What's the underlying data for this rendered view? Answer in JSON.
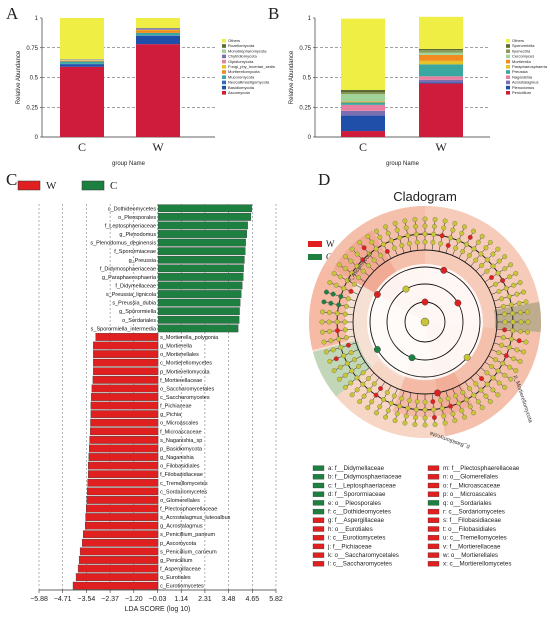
{
  "panels": {
    "a": "A",
    "b": "B",
    "c": "C",
    "d": "D"
  },
  "chart_data": [
    {
      "type": "bar",
      "panel": "A",
      "stacked": true,
      "ylabel": "Relative Abundance",
      "xlabel": "group Name",
      "categories": [
        "C",
        "W"
      ],
      "yticks": [
        "0",
        "0.25",
        "0.5",
        "0.75",
        "1"
      ],
      "ylim": [
        0,
        1
      ],
      "series": [
        {
          "name": "Ascomycota",
          "color": "#d01c3c",
          "values": [
            0.59,
            0.78
          ]
        },
        {
          "name": "Basidiomycota",
          "color": "#1f4fa8",
          "values": [
            0.02,
            0.07
          ]
        },
        {
          "name": "Neocallimastigomycota",
          "color": "#2e6fb0",
          "values": [
            0.005,
            0.005
          ]
        },
        {
          "name": "Mucoromycota",
          "color": "#3aa7a0",
          "values": [
            0.02,
            0.02
          ]
        },
        {
          "name": "Mortierellomycota",
          "color": "#f28a1e",
          "values": [
            0.005,
            0.02
          ]
        },
        {
          "name": "Fungi_phy_Incertae_sedis",
          "color": "#e6c229",
          "values": [
            0.005,
            0.005
          ]
        },
        {
          "name": "Olpidiomycota",
          "color": "#e87fa0",
          "values": [
            0.002,
            0.002
          ]
        },
        {
          "name": "Chytridiomycota",
          "color": "#7a6fb0",
          "values": [
            0.003,
            0.01
          ]
        },
        {
          "name": "Monoblepharomycota",
          "color": "#9fd39a",
          "values": [
            0.002,
            0.002
          ]
        },
        {
          "name": "Rozellomycota",
          "color": "#5b6b2f",
          "values": [
            0.002,
            0.002
          ]
        },
        {
          "name": "Others",
          "color": "#eeee44",
          "values": [
            0.346,
            0.084
          ]
        }
      ]
    },
    {
      "type": "bar",
      "panel": "B",
      "stacked": true,
      "ylabel": "Relative Abundance",
      "xlabel": "group Name",
      "categories": [
        "C",
        "W"
      ],
      "yticks": [
        "0",
        "0.25",
        "0.5",
        "0.75",
        "1"
      ],
      "ylim": [
        0,
        1
      ],
      "series": [
        {
          "name": "Penicillium",
          "color": "#d01c3c",
          "values": [
            0.05,
            0.45
          ]
        },
        {
          "name": "Plenodomus",
          "color": "#1f4fa8",
          "values": [
            0.13,
            0.01
          ]
        },
        {
          "name": "Acrostalagmus",
          "color": "#7a6fb0",
          "values": [
            0.04,
            0.02
          ]
        },
        {
          "name": "Naganishia",
          "color": "#e87fa0",
          "values": [
            0.05,
            0.03
          ]
        },
        {
          "name": "Preussia",
          "color": "#3aa7a0",
          "values": [
            0.02,
            0.1
          ]
        },
        {
          "name": "Paraphaeosphaeria",
          "color": "#e6c229",
          "values": [
            0.005,
            0.03
          ]
        },
        {
          "name": "Mortierella",
          "color": "#f28a1e",
          "values": [
            0.005,
            0.05
          ]
        },
        {
          "name": "Cercomyces",
          "color": "#9fd39a",
          "values": [
            0.06,
            0.02
          ]
        },
        {
          "name": "Ilyonectria",
          "color": "#8a9a55",
          "values": [
            0.015,
            0.02
          ]
        },
        {
          "name": "Sporormiella",
          "color": "#5b6b2f",
          "values": [
            0.02,
            0.01
          ]
        },
        {
          "name": "Others",
          "color": "#eeee44",
          "values": [
            0.6,
            0.27
          ]
        }
      ]
    },
    {
      "type": "bar",
      "panel": "C",
      "orientation": "horizontal",
      "xlabel": "LDA SCORE (log 10)",
      "xticks": [
        "−5.88",
        "−4.71",
        "−3.54",
        "−2.37",
        "−1.20",
        "−0.03",
        "1.14",
        "2.31",
        "3.48",
        "4.65",
        "5.82"
      ],
      "xlim": [
        -5.88,
        5.82
      ],
      "legend": [
        {
          "name": "W",
          "color": "#e02020"
        },
        {
          "name": "C",
          "color": "#1e8040"
        }
      ],
      "categories": [
        "c_Dothideomycetes",
        "o_Pleosporales",
        "f_Leptosphaeriaceae",
        "g_Plenodomus",
        "s_Plenodomus_deginensis",
        "f_Sporormiaceae",
        "g_Preussia",
        "f_Didymosphaeriaceae",
        "g_Paraphaeosphaeria",
        "f_Didymellaceae",
        "s_Preussia_lignicola",
        "s_Preussia_dubia",
        "g_Sporormiella",
        "o_Sordariales",
        "s_Sporormiella_intermedia",
        "s_Mortierella_polygonia",
        "g_Mortierella",
        "o_Mortierellales",
        "c_Mortierellomycetes",
        "p_Mortierellomycota",
        "f_Mortierellaceae",
        "o_Saccharomycetales",
        "c_Saccharomycetes",
        "f_Pichiaceae",
        "g_Pichia",
        "o_Microascales",
        "f_Microascaceae",
        "s_Naganishia_sp",
        "p_Basidiomycota",
        "g_Naganishia",
        "o_Filobasidiales",
        "f_Filobasidiaceae",
        "c_Tremellomycetes",
        "c_Sordariomycetes",
        "o_Glomerellales",
        "f_Plectosphaerellaceae",
        "s_Acrostalagmus_luteoalbus",
        "g_Acrostalagmus",
        "s_Penicillium_paneum",
        "p_Ascomycota",
        "s_Penicillium_carneum",
        "g_Penicillium",
        "f_Aspergillaceae",
        "o_Eurotiales",
        "c_Eurotiomycetes"
      ],
      "values": [
        4.62,
        4.58,
        4.42,
        4.38,
        4.32,
        4.3,
        4.26,
        4.22,
        4.2,
        4.15,
        4.1,
        4.05,
        4.02,
        4.0,
        3.95,
        -3.08,
        -3.2,
        -3.2,
        -3.2,
        -3.2,
        -3.22,
        -3.27,
        -3.3,
        -3.32,
        -3.32,
        -3.34,
        -3.35,
        -3.38,
        -3.4,
        -3.42,
        -3.45,
        -3.45,
        -3.48,
        -3.5,
        -3.52,
        -3.55,
        -3.58,
        -3.6,
        -3.7,
        -3.75,
        -3.85,
        -3.9,
        -3.95,
        -4.05,
        -4.2
      ]
    },
    {
      "type": "cladogram",
      "panel": "D",
      "title": "Cladogram",
      "legend": [
        {
          "name": "W",
          "color": "#e02020"
        },
        {
          "name": "C",
          "color": "#1e8040"
        }
      ],
      "arc_labels": [
        "p_Ascomycota",
        "p_Mortierellomycota",
        "p_Basidiomycota"
      ],
      "keys_left": [
        {
          "text": "a: f__Didymellaceae",
          "color": "#1e8040"
        },
        {
          "text": "b: f__Didymosphaeriaceae",
          "color": "#1e8040"
        },
        {
          "text": "c: f__Leptosphaeriaceae",
          "color": "#1e8040"
        },
        {
          "text": "d: f__Sporormiaceae",
          "color": "#1e8040"
        },
        {
          "text": "e: o__Pleosporales",
          "color": "#1e8040"
        },
        {
          "text": "f: c__Dothideomycetes",
          "color": "#1e8040"
        },
        {
          "text": "g: f__Aspergillaceae",
          "color": "#e02020"
        },
        {
          "text": "h: o__Eurotiales",
          "color": "#e02020"
        },
        {
          "text": "i: c__Eurotiomycetes",
          "color": "#e02020"
        },
        {
          "text": "j: f__Pichiaceae",
          "color": "#e02020"
        },
        {
          "text": "k: o__Saccharomycetales",
          "color": "#e02020"
        },
        {
          "text": "l: c__Saccharomycetes",
          "color": "#e02020"
        }
      ],
      "keys_right": [
        {
          "text": "m: f__Plectosphaerellaceae",
          "color": "#e02020"
        },
        {
          "text": "n: o__Glomerellales",
          "color": "#e02020"
        },
        {
          "text": "o: f__Microascaceae",
          "color": "#e02020"
        },
        {
          "text": "p: o__Microascales",
          "color": "#e02020"
        },
        {
          "text": "q: o__Sordariales",
          "color": "#1e8040"
        },
        {
          "text": "r: c__Sordariomycetes",
          "color": "#e02020"
        },
        {
          "text": "s: f__Filobasidiaceae",
          "color": "#e02020"
        },
        {
          "text": "t: o__Filobasidiales",
          "color": "#e02020"
        },
        {
          "text": "u: c__Tremellomycetes",
          "color": "#e02020"
        },
        {
          "text": "v: f__Mortierellaceae",
          "color": "#e02020"
        },
        {
          "text": "w: o__Mortierellales",
          "color": "#e02020"
        },
        {
          "text": "x: c__Mortierellomycetes",
          "color": "#e02020"
        }
      ]
    }
  ]
}
